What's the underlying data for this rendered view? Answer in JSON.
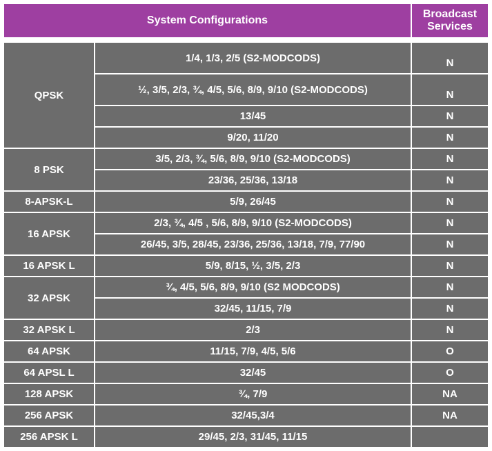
{
  "headers": {
    "sysconfig": "System Configurations",
    "broadcast": "Broadcast Services"
  },
  "colors": {
    "header_bg": "#9e3fa1",
    "cell_bg": "#6c6c6c",
    "text": "#ffffff"
  },
  "table": {
    "type": "table",
    "rows": [
      {
        "mod": "QPSK",
        "mod_rowspan": 4,
        "config": "1/4, 1/3, 2/5 (S2-MODCODS)",
        "svc": "N"
      },
      {
        "config": "½, 3/5, 2/3, ¾, 4/5, 5/6, 8/9, 9/10 (S2-MODCODS)",
        "svc": "N"
      },
      {
        "config": "13/45",
        "svc": "N"
      },
      {
        "config": "9/20, 11/20",
        "svc": "N"
      },
      {
        "mod": "8 PSK",
        "mod_rowspan": 2,
        "config": "3/5, 2/3, ¾, 5/6, 8/9, 9/10 (S2-MODCODS)",
        "svc": "N"
      },
      {
        "config": "23/36, 25/36, 13/18",
        "svc": "N"
      },
      {
        "mod": "8-APSK-L",
        "mod_rowspan": 1,
        "config": "5/9, 26/45",
        "svc": "N"
      },
      {
        "mod": "16 APSK",
        "mod_rowspan": 2,
        "config": "2/3, ¾, 4/5 , 5/6, 8/9, 9/10 (S2-MODCODS)",
        "svc": "N"
      },
      {
        "config": "26/45, 3/5, 28/45, 23/36, 25/36, 13/18, 7/9,  77/90",
        "svc": "N"
      },
      {
        "mod": "16 APSK L",
        "mod_rowspan": 1,
        "config": "5/9, 8/15, ½, 3/5, 2/3",
        "svc": "N"
      },
      {
        "mod": "32 APSK",
        "mod_rowspan": 2,
        "config": "¾, 4/5, 5/6, 8/9, 9/10 (S2 MODCODS)",
        "svc": "N"
      },
      {
        "config": "32/45, 11/15, 7/9",
        "svc": "N"
      },
      {
        "mod": "32 APSK L",
        "mod_rowspan": 1,
        "config": "2/3",
        "svc": "N"
      },
      {
        "mod": "64 APSK",
        "mod_rowspan": 1,
        "config": "11/15, 7/9, 4/5, 5/6",
        "svc": "O"
      },
      {
        "mod": "64 APSL L",
        "mod_rowspan": 1,
        "config": "32/45",
        "svc": "O"
      },
      {
        "mod": "128 APSK",
        "mod_rowspan": 1,
        "config": "¾, 7/9",
        "svc": "NA"
      },
      {
        "mod": "256 APSK",
        "mod_rowspan": 1,
        "config": "32/45,3/4",
        "svc": "NA"
      },
      {
        "mod": "256 APSK L",
        "mod_rowspan": 1,
        "config": "29/45, 2/3, 31/45, 11/15",
        "svc": ""
      }
    ]
  }
}
